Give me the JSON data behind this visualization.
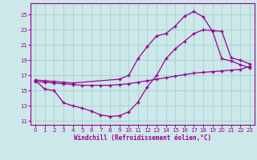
{
  "xlabel": "Windchill (Refroidissement éolien,°C)",
  "bg_color": "#cce8e8",
  "line_color": "#990099",
  "grid_color": "#aad4d4",
  "xlim": [
    -0.5,
    23.5
  ],
  "ylim": [
    10.5,
    26.5
  ],
  "xticks": [
    0,
    1,
    2,
    3,
    4,
    5,
    6,
    7,
    8,
    9,
    10,
    11,
    12,
    13,
    14,
    15,
    16,
    17,
    18,
    19,
    20,
    21,
    22,
    23
  ],
  "yticks": [
    11,
    13,
    15,
    17,
    19,
    21,
    23,
    25
  ],
  "series1_x": [
    0,
    1,
    2,
    3,
    4,
    9,
    10,
    11,
    12,
    13,
    14,
    15,
    16,
    17,
    18,
    19,
    20,
    21,
    22,
    23
  ],
  "series1_y": [
    16.4,
    16.3,
    16.2,
    16.1,
    16.0,
    16.5,
    17.0,
    19.2,
    20.8,
    22.2,
    22.5,
    23.5,
    24.8,
    25.4,
    24.7,
    22.8,
    19.2,
    18.9,
    18.4,
    18.0
  ],
  "series2_x": [
    0,
    1,
    2,
    3,
    4,
    5,
    6,
    7,
    8,
    9,
    10,
    11,
    12,
    13,
    14,
    15,
    16,
    17,
    18,
    19,
    20,
    21,
    22,
    23
  ],
  "series2_y": [
    16.2,
    16.1,
    16.0,
    15.9,
    15.8,
    15.7,
    15.7,
    15.7,
    15.7,
    15.8,
    15.9,
    16.1,
    16.3,
    16.5,
    16.7,
    16.9,
    17.1,
    17.3,
    17.4,
    17.5,
    17.6,
    17.7,
    17.8,
    18.2
  ],
  "series3_x": [
    0,
    1,
    2,
    3,
    4,
    5,
    6,
    7,
    8,
    9,
    10,
    11,
    12,
    13,
    14,
    15,
    16,
    17,
    18,
    19,
    20,
    21,
    22,
    23
  ],
  "series3_y": [
    16.3,
    15.2,
    15.0,
    13.4,
    13.0,
    12.7,
    12.3,
    11.8,
    11.6,
    11.7,
    12.2,
    13.5,
    15.5,
    17.0,
    19.2,
    20.5,
    21.5,
    22.5,
    23.0,
    22.9,
    22.8,
    19.3,
    19.0,
    18.5
  ]
}
